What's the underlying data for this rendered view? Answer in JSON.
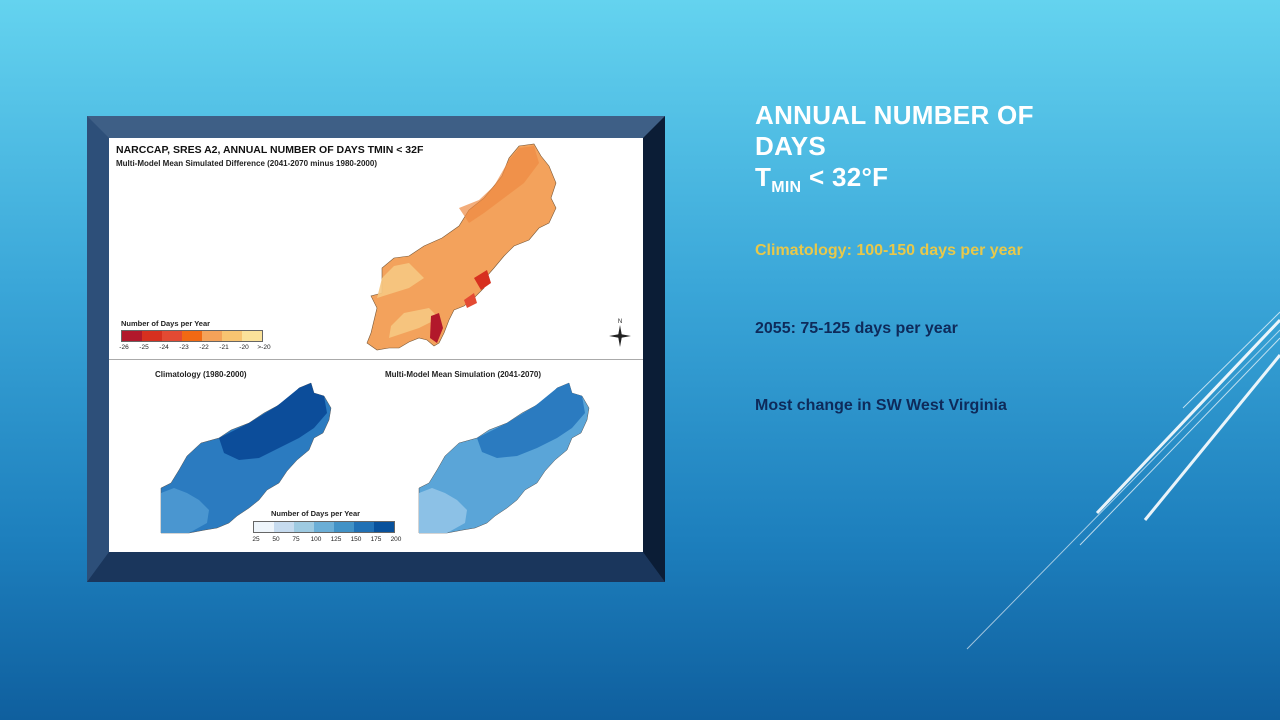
{
  "slide": {
    "title": {
      "line1": "Annual Number of",
      "line2": "Days",
      "t": "T",
      "subscript": "MIN",
      "tail": " < 32°F"
    },
    "bullets": [
      "Climatology: 100-150 days per year",
      "2055: 75-125 days per year",
      "Most change in SW West Virginia"
    ],
    "colors": {
      "accent_yellow": "#e8c84a",
      "dark_blue_text": "#0e2a5a",
      "title_white": "#ffffff"
    }
  },
  "figure": {
    "title": "NARCCAP, SRES A2, ANNUAL NUMBER OF DAYS TMIN < 32F",
    "subtitle": "Multi-Model Mean Simulated Difference (2041-2070 minus 1980-2000)",
    "top_legend": {
      "title": "Number of Days per Year",
      "ticks": [
        "-26",
        "-25",
        "-24",
        "-23",
        "-22",
        "-21",
        "-20",
        ">-20"
      ],
      "colors": [
        "#b2182b",
        "#d7301f",
        "#e34a33",
        "#f16913",
        "#f4a259",
        "#f8c471",
        "#fbe29a"
      ]
    },
    "compass_label": "N",
    "panel_left_title": "Climatology (1980-2000)",
    "panel_right_title": "Multi-Model Mean Simulation (2041-2070)",
    "bottom_legend": {
      "title": "Number of Days per Year",
      "ticks": [
        "25",
        "50",
        "75",
        "100",
        "125",
        "150",
        "175",
        "200"
      ],
      "colors": [
        "#eef5fb",
        "#c6dbef",
        "#9ecae1",
        "#6baed6",
        "#4292c6",
        "#2171b5",
        "#08519c"
      ]
    }
  }
}
